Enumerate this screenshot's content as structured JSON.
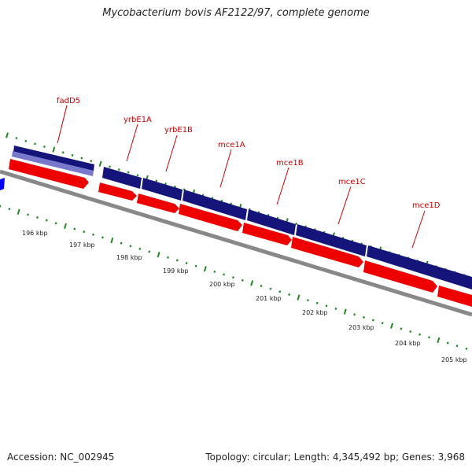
{
  "header": {
    "title": "Mycobacterium bovis AF2122/97, complete genome"
  },
  "footer": {
    "accession": "Accession: NC_002945",
    "summary": "Topology: circular; Length: 4,345,492 bp; Genes: 3,968"
  },
  "colors": {
    "label": "#cc0000",
    "cds_forward": "#14147a",
    "cds_forward_light": "#7777cc",
    "cds_reverse": "#ee0000",
    "backbone": "#888888",
    "tick": "#228822",
    "edge_blue": "#0000ff"
  },
  "genes": [
    {
      "name": "fadD5"
    },
    {
      "name": "yrbE1A"
    },
    {
      "name": "yrbE1B"
    },
    {
      "name": "mce1A"
    },
    {
      "name": "mce1B"
    },
    {
      "name": "mce1C"
    },
    {
      "name": "mce1D"
    }
  ],
  "scale_labels": [
    "196 kbp",
    "197 kbp",
    "198 kbp",
    "199 kbp",
    "200 kbp",
    "201 kbp",
    "202 kbp",
    "203 kbp",
    "204 kbp",
    "205 kbp"
  ]
}
